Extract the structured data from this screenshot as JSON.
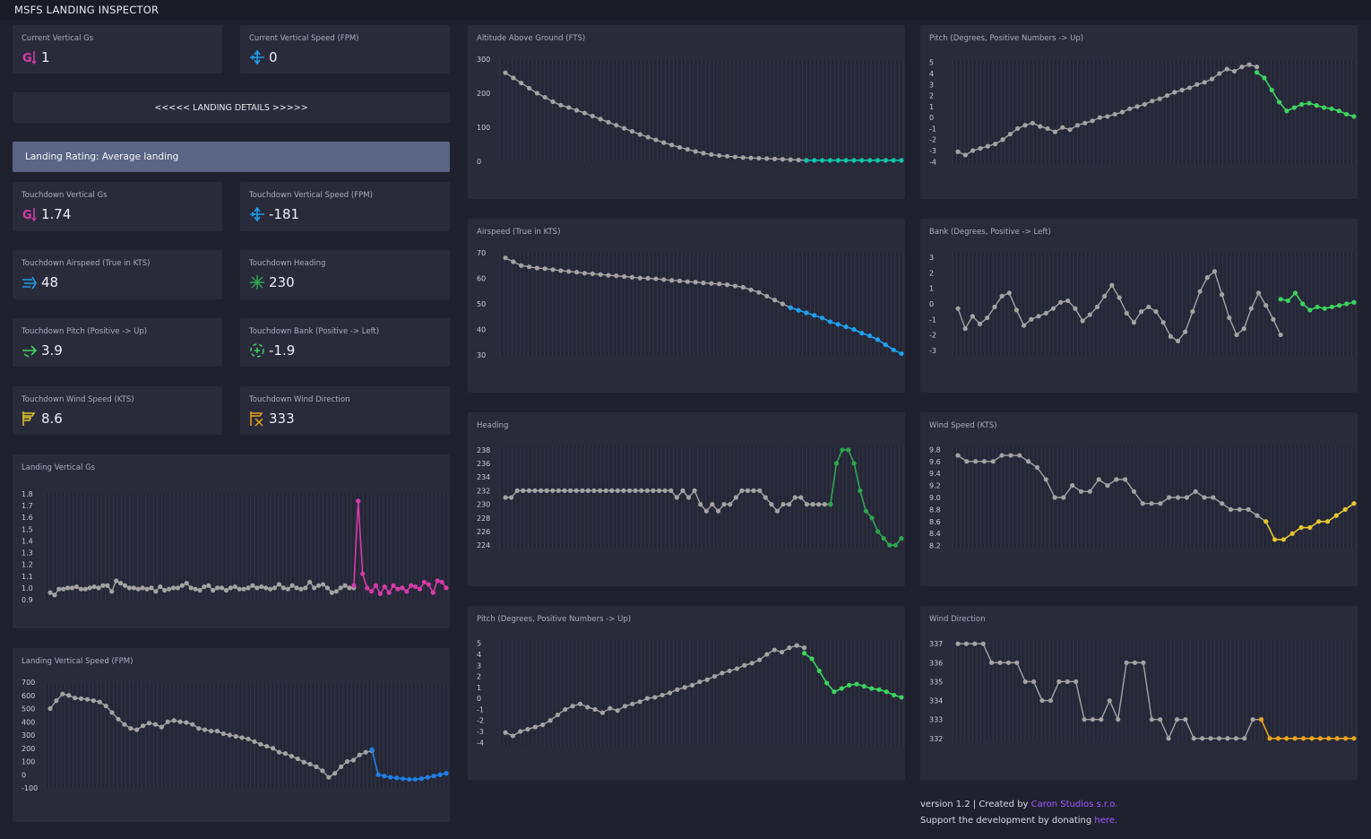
{
  "app": {
    "title": "MSFS LANDING INSPECTOR"
  },
  "colors": {
    "background": "#20212e",
    "card": "#292b3b",
    "rating_bar": "#5a6585",
    "link": "#a259ff",
    "grey_points": "#a3a3a3"
  },
  "current": {
    "vertical_gs": {
      "label": "Current Vertical Gs",
      "value": "1",
      "icon": "g-force-icon"
    },
    "vertical_speed": {
      "label": "Current Vertical Speed (FPM)",
      "value": "0",
      "icon": "vertical-speed-icon"
    }
  },
  "landing_details_label": "<<<<< LANDING DETAILS >>>>>",
  "rating": {
    "text": "Landing Rating: Average landing"
  },
  "touchdown": {
    "vertical_gs": {
      "label": "Touchdown Vertical Gs",
      "value": "1.74",
      "icon": "g-force-icon"
    },
    "vertical_speed": {
      "label": "Touchdown Vertical Speed (FPM)",
      "value": "-181",
      "icon": "vertical-speed-icon"
    },
    "airspeed": {
      "label": "Touchdown Airspeed (True in KTS)",
      "value": "48",
      "icon": "airspeed-icon"
    },
    "heading": {
      "label": "Touchdown Heading",
      "value": "230",
      "icon": "compass-icon"
    },
    "pitch": {
      "label": "Touchdown Pitch (Positive -> Up)",
      "value": "3.9",
      "icon": "pitch-icon"
    },
    "bank": {
      "label": "Touchdown Bank (Positive -> Left)",
      "value": "-1.9",
      "icon": "bank-icon"
    },
    "wind_speed": {
      "label": "Touchdown Wind Speed (KTS)",
      "value": "8.6",
      "icon": "windsock-icon"
    },
    "wind_direction": {
      "label": "Touchdown Wind Direction",
      "value": "333",
      "icon": "wind-direction-icon"
    }
  },
  "chart_data": [
    {
      "id": "vgs",
      "type": "line",
      "title": "Landing Vertical Gs",
      "yticks": [
        "1.8",
        "1.7",
        "1.6",
        "1.5",
        "1.4",
        "1.3",
        "1.2",
        "1.1",
        "1.0",
        "0.9"
      ],
      "ylim": [
        0.9,
        1.8
      ],
      "highlight_color": "#d63aa6",
      "grey_values": [
        0.96,
        0.94,
        0.99,
        0.99,
        1.0,
        1.0,
        1.01,
        0.99,
        0.99,
        1.0,
        1.01,
        1.0,
        1.02,
        1.02,
        0.97,
        1.06,
        1.04,
        1.02,
        1.0,
        1.0,
        0.99,
        1.0,
        0.99,
        1.0,
        0.97,
        1.01,
        0.98,
        0.99,
        1.0,
        1.0,
        1.02,
        1.04,
        1.0,
        0.99,
        0.98,
        1.01,
        1.02,
        0.98,
        1.0,
        1.0,
        0.98,
        1.0,
        1.01,
        0.99,
        0.99,
        1.0,
        1.02,
        1.0,
        1.01,
        1.0,
        0.99,
        1.0,
        1.03,
        1.0,
        0.99,
        1.02,
        1.0,
        0.99,
        1.0,
        1.05,
        1.0,
        1.02,
        1.03,
        1.0,
        0.96,
        0.97,
        1.0,
        1.02,
        1.0,
        1.0
      ],
      "highlight_values": [
        1.02,
        1.74,
        1.12,
        1.0,
        0.97,
        1.02,
        0.95,
        1.01,
        0.96,
        1.02,
        0.99,
        1.0,
        0.97,
        1.02,
        1.01,
        0.99,
        1.05,
        1.03,
        0.96,
        1.06,
        1.05,
        1.0
      ]
    },
    {
      "id": "vs",
      "type": "line",
      "title": "Landing Vertical Speed (FPM)",
      "yticks": [
        "700",
        "600",
        "500",
        "400",
        "300",
        "200",
        "100",
        "0",
        "-100"
      ],
      "ylim": [
        -100,
        700
      ],
      "highlight_color": "#1e7fe6",
      "grey_values": [
        500,
        560,
        610,
        600,
        580,
        575,
        570,
        560,
        550,
        520,
        470,
        420,
        380,
        350,
        340,
        370,
        390,
        380,
        360,
        400,
        410,
        400,
        395,
        380,
        350,
        340,
        330,
        330,
        310,
        300,
        290,
        280,
        270,
        250,
        230,
        215,
        200,
        170,
        160,
        140,
        120,
        95,
        80,
        60,
        30,
        -20,
        10,
        60,
        100,
        110,
        150,
        170,
        180
      ],
      "highlight_values": [
        190,
        0,
        -10,
        -20,
        -25,
        -30,
        -35,
        -35,
        -30,
        -20,
        -10,
        0,
        10
      ]
    },
    {
      "id": "alt",
      "type": "line",
      "title": "Altitude Above Ground (FTS)",
      "yticks": [
        "300",
        "200",
        "100",
        "0"
      ],
      "ylim": [
        0,
        300
      ],
      "highlight_color": "#0fc2a9",
      "grey_values": [
        260,
        245,
        230,
        215,
        200,
        188,
        175,
        165,
        158,
        150,
        142,
        133,
        124,
        115,
        106,
        97,
        88,
        79,
        71,
        63,
        55,
        48,
        41,
        35,
        29,
        24,
        20,
        17,
        15,
        13,
        11,
        10,
        9,
        8,
        7,
        6,
        5,
        4,
        3
      ],
      "highlight_values": [
        3,
        3,
        3,
        3,
        3,
        3,
        3,
        3,
        3,
        3,
        3,
        3,
        3
      ]
    },
    {
      "id": "air",
      "type": "line",
      "title": "Airspeed (True in KTS)",
      "yticks": [
        "70",
        "60",
        "50",
        "40",
        "30"
      ],
      "ylim": [
        30,
        70
      ],
      "highlight_color": "#1ea0f0",
      "grey_values": [
        68,
        66.5,
        65,
        64.5,
        64,
        63.8,
        63.4,
        63,
        62.7,
        62.4,
        62,
        61.8,
        61.5,
        61.2,
        61,
        60.7,
        60.4,
        60.1,
        60,
        59.8,
        59.5,
        59.2,
        59,
        58.7,
        58.5,
        58.2,
        58,
        57.8,
        57.5,
        57,
        56.5,
        55.5,
        54.5,
        53,
        51.5,
        50,
        48.5
      ],
      "highlight_values": [
        48.5,
        47.5,
        46.5,
        45.5,
        44.5,
        43,
        42,
        41,
        40,
        38.5,
        37.5,
        36,
        34,
        32,
        30.5
      ]
    },
    {
      "id": "hdg",
      "type": "line",
      "title": "Heading",
      "yticks": [
        "238",
        "236",
        "234",
        "232",
        "230",
        "228",
        "226",
        "224"
      ],
      "ylim": [
        223.5,
        238.5
      ],
      "highlight_color": "#2ea44f",
      "grey_values": [
        231,
        231,
        232,
        232,
        232,
        232,
        232,
        232,
        232,
        232,
        232,
        232,
        232,
        232,
        232,
        232,
        232,
        232,
        232,
        232,
        232,
        232,
        232,
        232,
        232,
        232,
        232,
        232,
        232,
        231,
        232,
        231,
        232,
        230,
        229,
        230,
        229,
        230,
        230,
        231,
        232,
        232,
        232,
        232,
        231,
        230,
        229,
        230,
        230,
        231,
        231,
        230,
        230,
        230,
        230,
        230
      ],
      "highlight_values": [
        230,
        236,
        238,
        238,
        236,
        232,
        229,
        228,
        226,
        225,
        224,
        224,
        225
      ]
    },
    {
      "id": "pitch1",
      "type": "line",
      "title": "Pitch (Degrees, Positive Numbers -> Up)",
      "yticks": [
        "5",
        "4",
        "3",
        "2",
        "1",
        "0",
        "-1",
        "-2",
        "-3",
        "-4"
      ],
      "ylim": [
        -4.3,
        5.3
      ],
      "highlight_color": "#3ed35f",
      "grey_values": [
        -3.1,
        -3.4,
        -3.0,
        -2.8,
        -2.6,
        -2.4,
        -2.0,
        -1.5,
        -1.0,
        -0.7,
        -0.5,
        -0.8,
        -1.0,
        -1.3,
        -0.9,
        -1.1,
        -0.7,
        -0.5,
        -0.3,
        0,
        0.1,
        0.3,
        0.5,
        0.8,
        1.0,
        1.2,
        1.5,
        1.7,
        2.0,
        2.3,
        2.5,
        2.7,
        3.0,
        3.2,
        3.5,
        4.0,
        4.4,
        4.2,
        4.6,
        4.8,
        4.6
      ],
      "highlight_values": [
        4.1,
        3.6,
        2.5,
        1.4,
        0.6,
        0.9,
        1.2,
        1.3,
        1.1,
        0.9,
        0.8,
        0.6,
        0.3,
        0.1
      ]
    },
    {
      "id": "bank",
      "type": "line",
      "title": "Bank (Degrees, Positive -> Left)",
      "yticks": [
        "3",
        "2",
        "1",
        "0",
        "-1",
        "-2",
        "-3"
      ],
      "ylim": [
        -3.3,
        3.3
      ],
      "highlight_color": "#3ed35f",
      "grey_values": [
        -0.3,
        -1.6,
        -0.8,
        -1.3,
        -0.9,
        -0.2,
        0.5,
        0.7,
        -0.4,
        -1.4,
        -1.0,
        -0.8,
        -0.6,
        -0.3,
        0.1,
        0.2,
        -0.3,
        -1.1,
        -0.7,
        -0.2,
        0.5,
        1.2,
        0.4,
        -0.6,
        -1.2,
        -0.5,
        -0.2,
        -0.5,
        -1.2,
        -2.1,
        -2.4,
        -1.8,
        -0.5,
        0.8,
        1.7,
        2.1,
        0.6,
        -0.9,
        -2.0,
        -1.6,
        -0.3,
        0.7,
        -0.1,
        -1.0,
        -2.0
      ],
      "highlight_values": [
        0.3,
        0.2,
        0.7,
        0.0,
        -0.4,
        -0.2,
        -0.3,
        -0.2,
        -0.1,
        0.0,
        0.1
      ]
    },
    {
      "id": "wind",
      "type": "line",
      "title": "Wind Speed (KTS)",
      "yticks": [
        "9.8",
        "9.6",
        "9.4",
        "9.2",
        "9.0",
        "8.8",
        "8.6",
        "8.4",
        "8.2"
      ],
      "ylim": [
        8.15,
        9.85
      ],
      "highlight_color": "#e5c72b",
      "grey_values": [
        9.7,
        9.6,
        9.6,
        9.6,
        9.6,
        9.7,
        9.7,
        9.7,
        9.6,
        9.5,
        9.3,
        9.0,
        9.0,
        9.2,
        9.1,
        9.1,
        9.3,
        9.2,
        9.3,
        9.3,
        9.1,
        8.9,
        8.9,
        8.9,
        9.0,
        9.0,
        9.0,
        9.1,
        9.0,
        9.0,
        8.9,
        8.8,
        8.8,
        8.8,
        8.7,
        8.6
      ],
      "highlight_values": [
        8.6,
        8.3,
        8.3,
        8.4,
        8.5,
        8.5,
        8.6,
        8.6,
        8.7,
        8.8,
        8.9
      ]
    },
    {
      "id": "pitch2",
      "type": "line",
      "title": "Pitch (Degrees, Positive Numbers -> Up)",
      "yticks": [
        "5",
        "4",
        "3",
        "2",
        "1",
        "0",
        "-1",
        "-2",
        "-3",
        "-4"
      ],
      "ylim": [
        -4.3,
        5.3
      ],
      "highlight_color": "#3ed35f",
      "grey_values": [
        -3.1,
        -3.4,
        -3.0,
        -2.8,
        -2.6,
        -2.4,
        -2.0,
        -1.5,
        -1.0,
        -0.7,
        -0.5,
        -0.8,
        -1.0,
        -1.3,
        -0.9,
        -1.1,
        -0.7,
        -0.5,
        -0.3,
        0,
        0.1,
        0.3,
        0.5,
        0.8,
        1.0,
        1.2,
        1.5,
        1.7,
        2.0,
        2.3,
        2.5,
        2.7,
        3.0,
        3.2,
        3.5,
        4.0,
        4.4,
        4.2,
        4.6,
        4.8,
        4.6
      ],
      "highlight_values": [
        4.1,
        3.6,
        2.5,
        1.4,
        0.6,
        0.9,
        1.2,
        1.3,
        1.1,
        0.9,
        0.8,
        0.6,
        0.3,
        0.1
      ]
    },
    {
      "id": "wdir",
      "type": "line",
      "title": "Wind Direction",
      "yticks": [
        "337",
        "336",
        "335",
        "334",
        "333",
        "332"
      ],
      "ylim": [
        331.8,
        337.2
      ],
      "highlight_color": "#e8a21b",
      "grey_values": [
        337,
        337,
        337,
        337,
        336,
        336,
        336,
        336,
        335,
        335,
        334,
        334,
        335,
        335,
        335,
        333,
        333,
        333,
        334,
        333,
        336,
        336,
        336,
        333,
        333,
        332,
        333,
        333,
        332,
        332,
        332,
        332,
        332,
        332,
        332,
        333,
        333
      ],
      "highlight_values": [
        333,
        332,
        332,
        332,
        332,
        332,
        332,
        332,
        332,
        332,
        332,
        332
      ]
    }
  ],
  "footer": {
    "version_prefix": "version 1.2 | Created by ",
    "creator": "Caron Studios s.r.o.",
    "support_prefix": "Support the development by donating ",
    "support_link": "here."
  }
}
